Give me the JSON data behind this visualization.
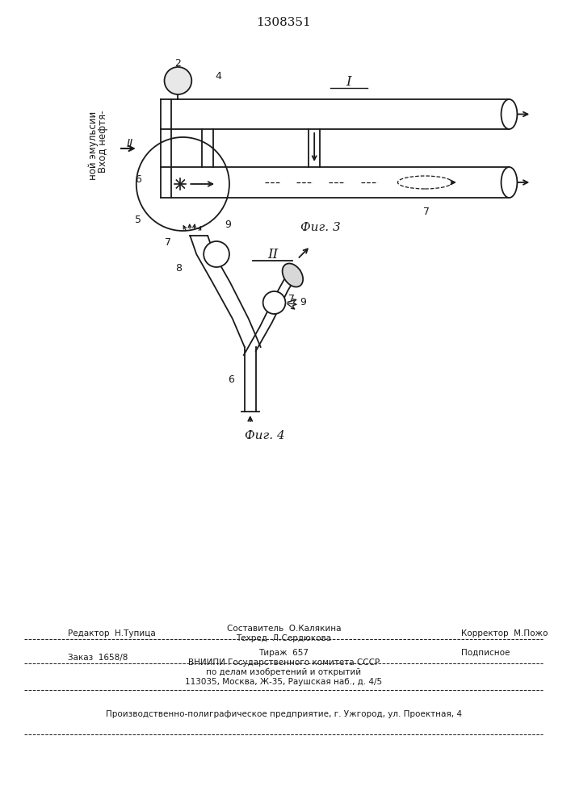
{
  "patent_number": "1308351",
  "fig3_label": "Фиг. 3",
  "fig4_label": "Фиг. 4",
  "inlet_label_line1": "Вход нефтя-",
  "inlet_label_line2": "ной эмульсии",
  "footer_editor": "Редактор  Н.Тупица",
  "footer_sostavitel": "Составитель  О.Калякина",
  "footer_tekhred": "Техред  Л.Сердюкова",
  "footer_corrector": "Корректор  М.Пожо",
  "footer_order": "Заказ  1658/8",
  "footer_tirazh": "Тираж  657",
  "footer_podpisnoe": "Подписное",
  "footer_vniiipi": "ВНИИПИ Государственного комитета СССР",
  "footer_po_delam": "по делам изобретений и открытий",
  "footer_address": "113035, Москва, Ж-35, Раушская наб., д. 4/5",
  "footer_proizv": "Производственно-полиграфическое предприятие, г. Ужгород, ул. Проектная, 4",
  "bg_color": "#ffffff",
  "line_color": "#1a1a1a"
}
